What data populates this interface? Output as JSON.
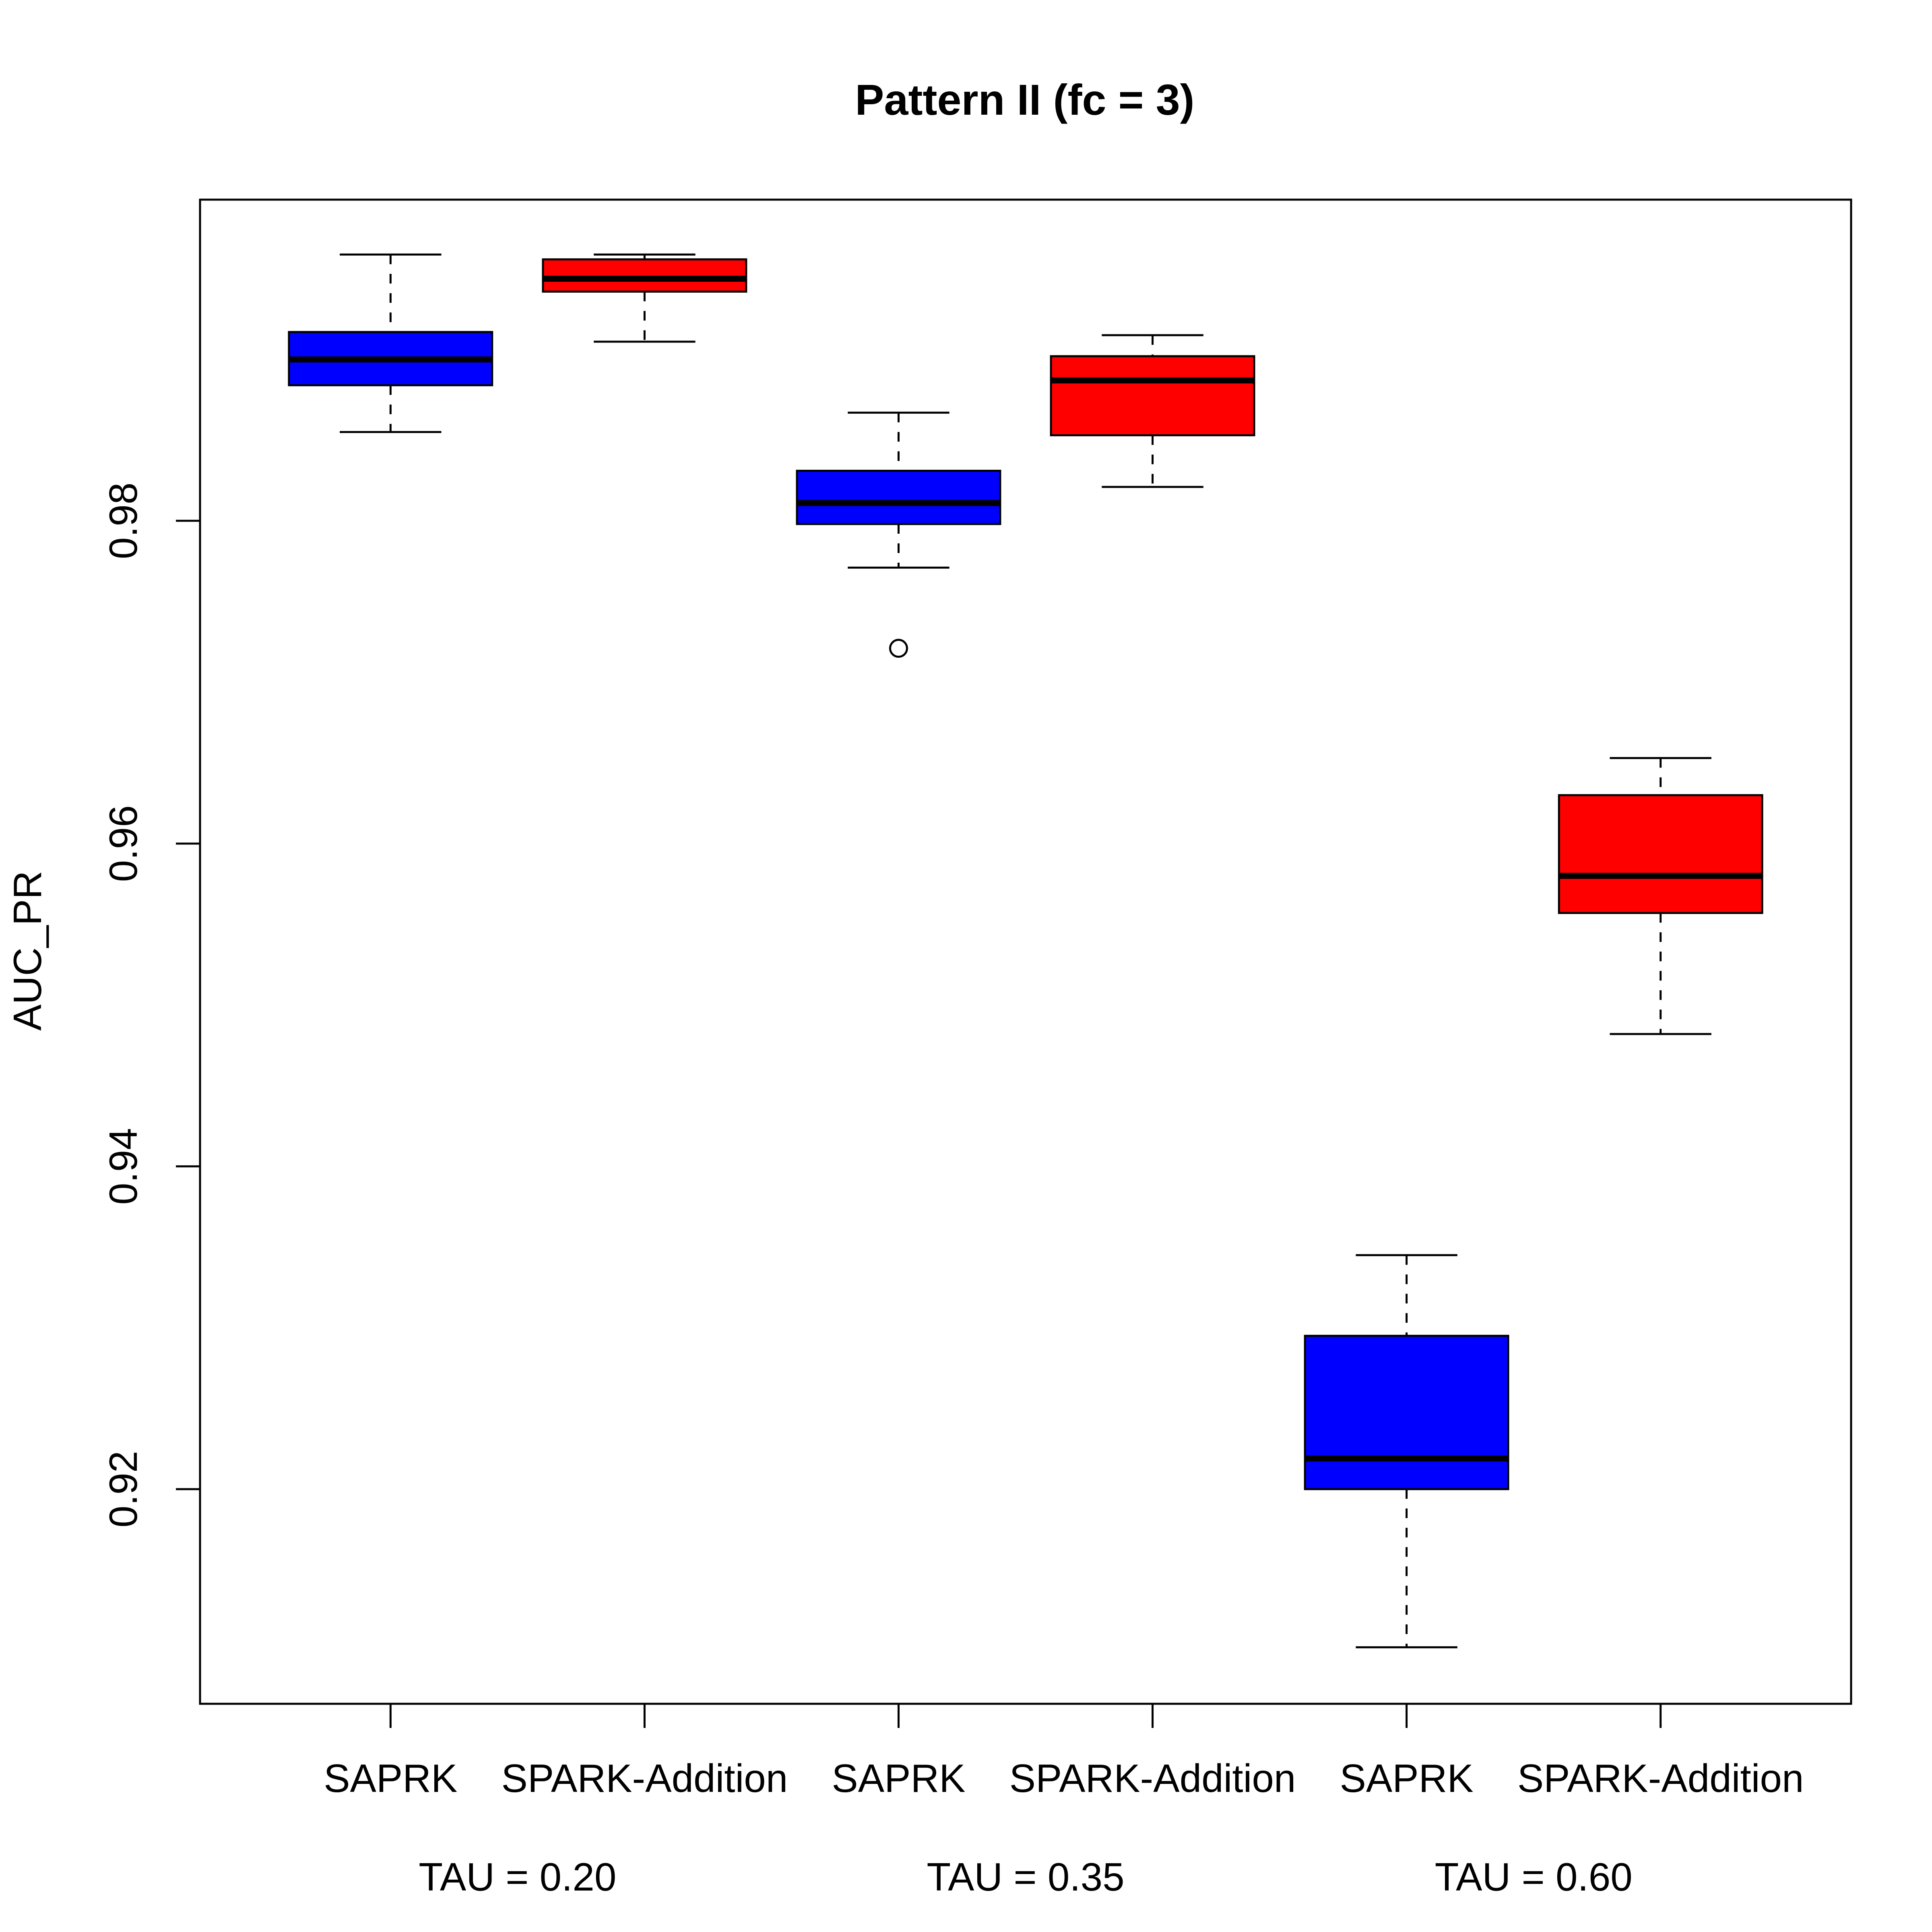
{
  "chart_data": {
    "type": "boxplot",
    "title": "Pattern II (fc = 3)",
    "xlabel": "",
    "ylabel": "AUC_PR",
    "ylim": [
      0.9067,
      0.9999
    ],
    "y_ticks": [
      "0.92",
      "0.94",
      "0.96",
      "0.98"
    ],
    "grid": false,
    "categories": [
      "SAPRK",
      "SPARK-Addition",
      "SAPRK",
      "SPARK-Addition",
      "SAPRK",
      "SPARK-Addition"
    ],
    "groups": [
      "TAU = 0.20",
      "TAU = 0.35",
      "TAU = 0.60"
    ],
    "colors": {
      "SAPRK": "#0000ff",
      "SPARK-Addition": "#ff0000",
      "outline": "#000000"
    },
    "boxes": [
      {
        "category": "SAPRK",
        "group": "TAU = 0.20",
        "fill": "#0000ff",
        "whisker_low": 0.9855,
        "q1": 0.9884,
        "median": 0.99,
        "q3": 0.9917,
        "whisker_high": 0.9965,
        "outliers": []
      },
      {
        "category": "SPARK-Addition",
        "group": "TAU = 0.20",
        "fill": "#ff0000",
        "whisker_low": 0.9911,
        "q1": 0.9942,
        "median": 0.995,
        "q3": 0.9962,
        "whisker_high": 0.9965,
        "outliers": []
      },
      {
        "category": "SAPRK",
        "group": "TAU = 0.35",
        "fill": "#0000ff",
        "whisker_low": 0.9771,
        "q1": 0.9798,
        "median": 0.9811,
        "q3": 0.9831,
        "whisker_high": 0.9867,
        "outliers": [
          0.9721
        ]
      },
      {
        "category": "SPARK-Addition",
        "group": "TAU = 0.35",
        "fill": "#ff0000",
        "whisker_low": 0.9821,
        "q1": 0.9853,
        "median": 0.9887,
        "q3": 0.9902,
        "whisker_high": 0.9915,
        "outliers": []
      },
      {
        "category": "SAPRK",
        "group": "TAU = 0.60",
        "fill": "#0000ff",
        "whisker_low": 0.9102,
        "q1": 0.92,
        "median": 0.9219,
        "q3": 0.9295,
        "whisker_high": 0.9345,
        "outliers": []
      },
      {
        "category": "SPARK-Addition",
        "group": "TAU = 0.60",
        "fill": "#ff0000",
        "whisker_low": 0.9482,
        "q1": 0.9557,
        "median": 0.958,
        "q3": 0.963,
        "whisker_high": 0.9653,
        "outliers": []
      }
    ]
  }
}
